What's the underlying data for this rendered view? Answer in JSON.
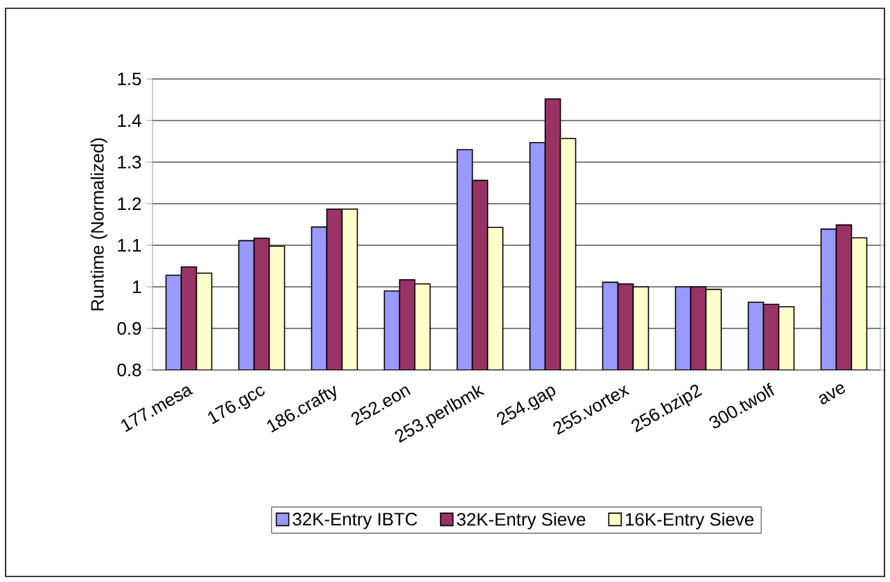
{
  "chart_data": {
    "type": "bar",
    "ylabel": "Runtime (Normalized)",
    "categories": [
      "177.mesa",
      "176.gcc",
      "186.crafty",
      "252.eon",
      "253.perlbmk",
      "254.gap",
      "255.vortex",
      "256.bzip2",
      "300.twolf",
      "ave"
    ],
    "series": [
      {
        "name": "32K-Entry IBTC",
        "color": "#9999ff",
        "values": [
          1.028,
          1.111,
          1.144,
          0.99,
          1.33,
          1.347,
          1.011,
          1.0,
          0.963,
          1.139
        ]
      },
      {
        "name": "32K-Entry Sieve",
        "color": "#993366",
        "values": [
          1.048,
          1.117,
          1.187,
          1.017,
          1.256,
          1.452,
          1.007,
          1.0,
          0.958,
          1.149
        ]
      },
      {
        "name": "16K-Entry Sieve",
        "color": "#ffffcc",
        "values": [
          1.033,
          1.098,
          1.187,
          1.007,
          1.143,
          1.357,
          1.0,
          0.994,
          0.952,
          1.118
        ]
      }
    ],
    "ylim": [
      0.8,
      1.5
    ],
    "yticks": [
      0.8,
      0.9,
      1,
      1.1,
      1.2,
      1.3,
      1.4,
      1.5
    ],
    "grid": "y",
    "legend": "bottom"
  }
}
